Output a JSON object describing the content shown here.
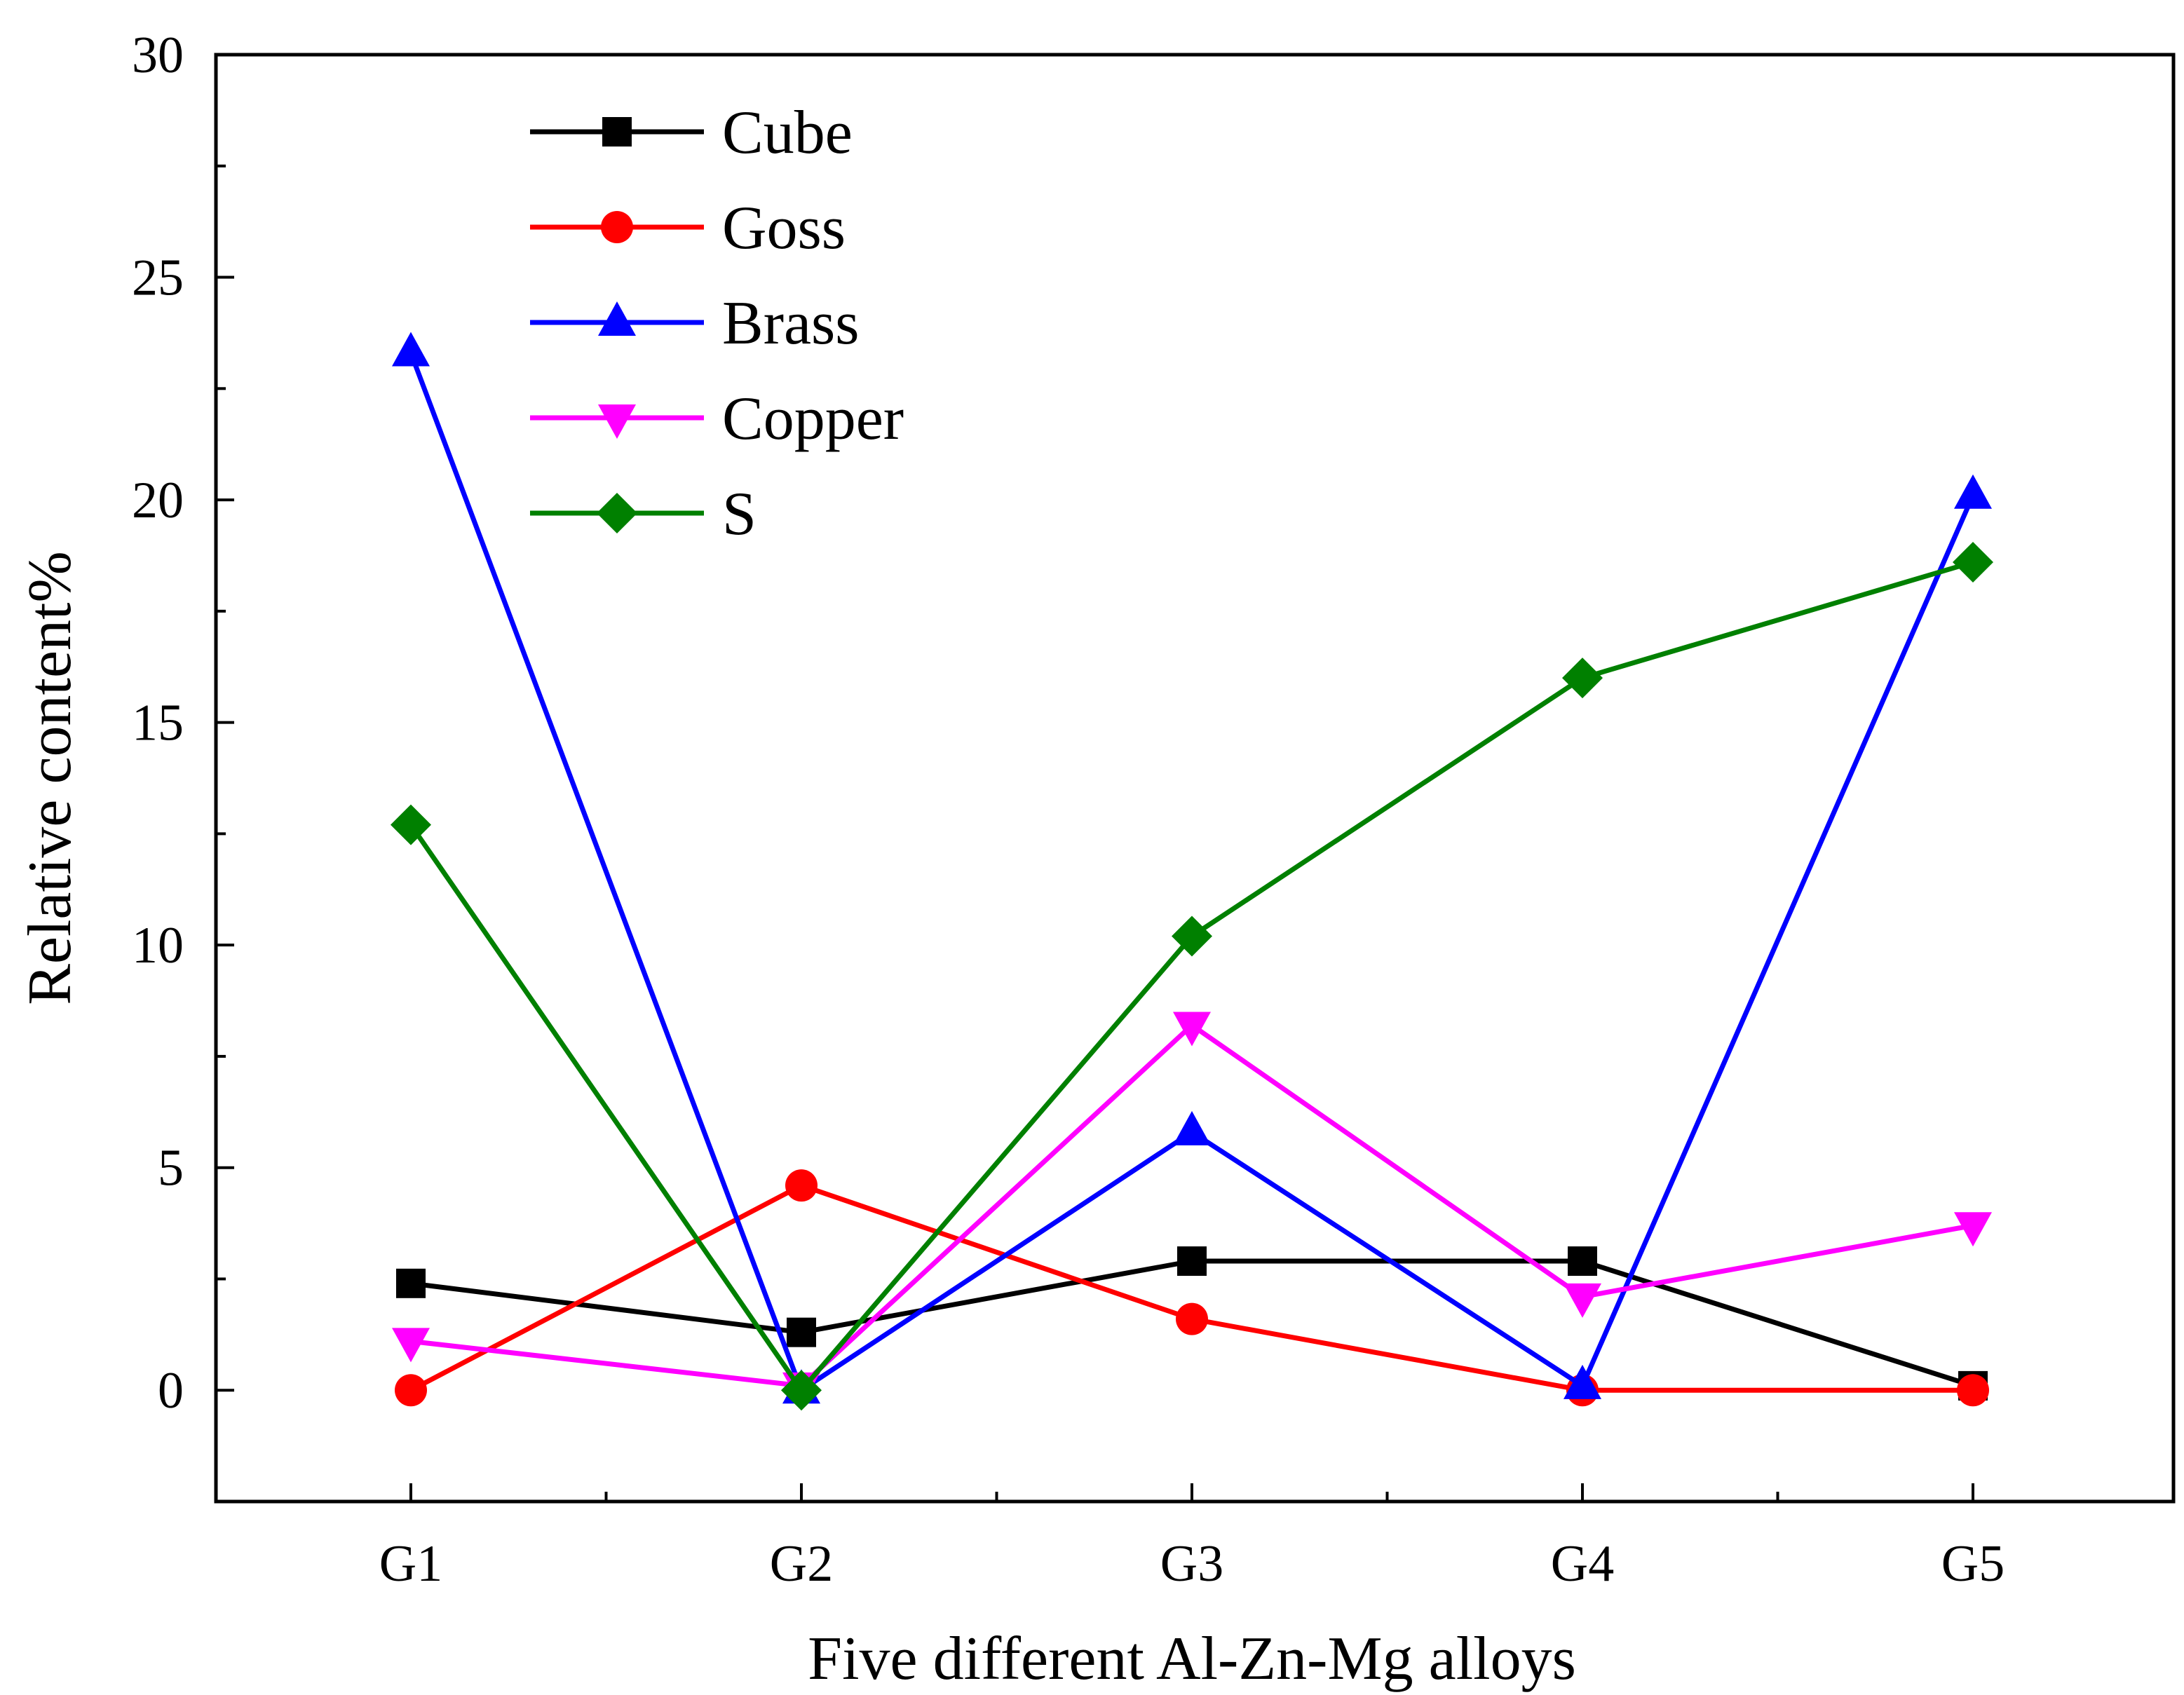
{
  "chart_data": {
    "type": "line",
    "title": "",
    "xlabel": "Five different Al-Zn-Mg alloys",
    "ylabel": "Relative content%",
    "categories": [
      "G1",
      "G2",
      "G3",
      "G4",
      "G5"
    ],
    "ylim": [
      -2.5,
      30
    ],
    "yticks": [
      0,
      5,
      10,
      15,
      20,
      25,
      30
    ],
    "ytick_labels": [
      "0",
      "5",
      "10",
      "15",
      "20",
      "25",
      "30"
    ],
    "grid": false,
    "legend_position": "top-left",
    "series": [
      {
        "name": "Cube",
        "color": "#000000",
        "marker": "square",
        "values": [
          2.4,
          1.3,
          2.9,
          2.9,
          0.1
        ]
      },
      {
        "name": "Goss",
        "color": "#ff0000",
        "marker": "circle",
        "values": [
          0.0,
          4.6,
          1.6,
          0.0,
          0.0
        ]
      },
      {
        "name": "Brass",
        "color": "#0000ff",
        "marker": "triangle-up",
        "values": [
          23.3,
          0.0,
          5.8,
          0.1,
          20.1
        ]
      },
      {
        "name": "Copper",
        "color": "#ff00ff",
        "marker": "triangle-down",
        "values": [
          1.1,
          0.1,
          8.2,
          2.1,
          3.7
        ]
      },
      {
        "name": "S",
        "color": "#008000",
        "marker": "diamond",
        "values": [
          12.7,
          0.0,
          10.2,
          16.0,
          18.6
        ]
      }
    ]
  }
}
